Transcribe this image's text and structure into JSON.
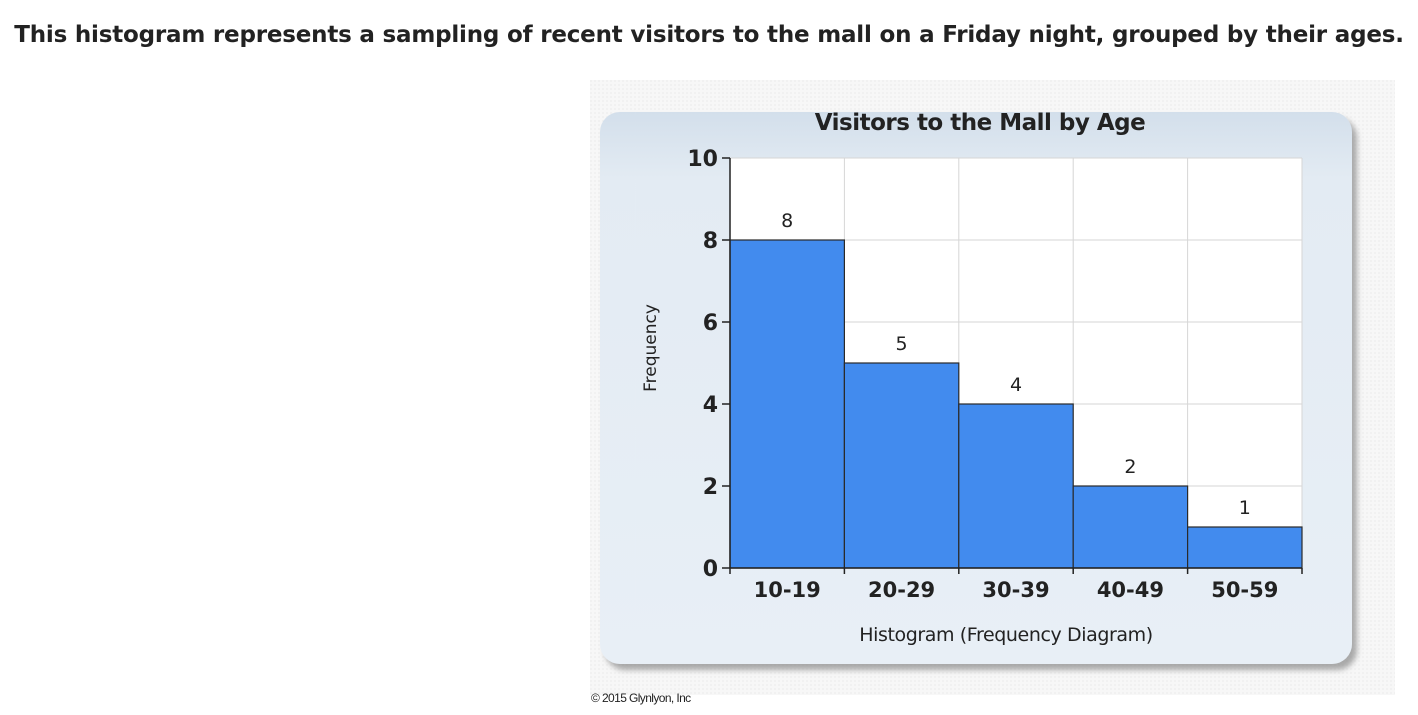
{
  "question": {
    "text": "This histogram represents a sampling of recent visitors to the mall on a Friday night, grouped by their ages."
  },
  "copyright": {
    "text": "© 2015 Glynlyon, Inc"
  },
  "colors": {
    "bar": "#428bee",
    "panel_bg": "#dfe8f1",
    "plot_bg": "#ffffff",
    "grid": "#d6d6d6"
  },
  "chart_data": {
    "type": "bar",
    "title": "Visitors to the Mall by Age",
    "xlabel": "Histogram (Frequency Diagram)",
    "ylabel": "Frequency",
    "categories": [
      "10-19",
      "20-29",
      "30-39",
      "40-49",
      "50-59"
    ],
    "values": [
      8,
      5,
      4,
      2,
      1
    ],
    "data_labels": [
      "8",
      "5",
      "4",
      "2",
      "1"
    ],
    "ylim": [
      0,
      10
    ],
    "yticks": [
      0,
      2,
      4,
      6,
      8,
      10
    ],
    "grid": true,
    "bar_gap": 0
  }
}
